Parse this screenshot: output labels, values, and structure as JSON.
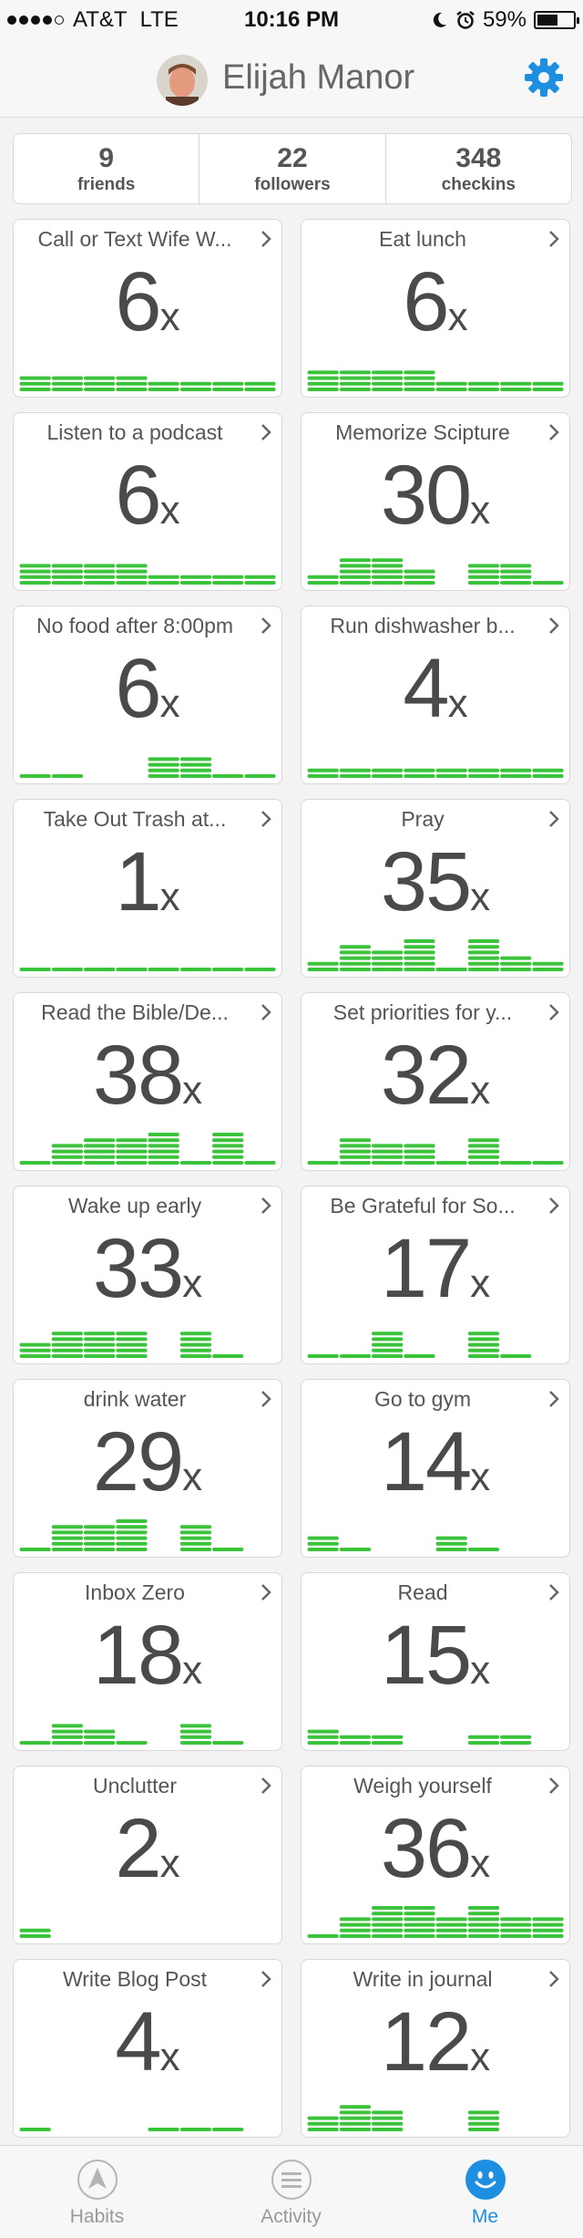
{
  "status_bar": {
    "carrier": "AT&T",
    "network": "LTE",
    "time": "10:16 PM",
    "battery": "59%",
    "battery_level": 0.59,
    "signal_bars_filled": 4,
    "signal_bars_total": 5
  },
  "header": {
    "user_name": "Elijah Manor",
    "settings_icon": "gear-icon",
    "accent_color": "#1e8fe0"
  },
  "stats": [
    {
      "value": "9",
      "label": "friends"
    },
    {
      "value": "22",
      "label": "followers"
    },
    {
      "value": "348",
      "label": "checkins"
    }
  ],
  "bar_color": "#3cc33c",
  "count_suffix": "x",
  "habits": [
    {
      "title": "Call or Text Wife W...",
      "count": "6",
      "bars": [
        3,
        3,
        3,
        3,
        2,
        2,
        2,
        2
      ]
    },
    {
      "title": "Eat lunch",
      "count": "6",
      "bars": [
        4,
        4,
        4,
        4,
        2,
        2,
        2,
        2
      ]
    },
    {
      "title": "Listen to a podcast",
      "count": "6",
      "bars": [
        4,
        4,
        4,
        4,
        2,
        2,
        2,
        2
      ]
    },
    {
      "title": "Memorize Scipture",
      "count": "30",
      "bars": [
        2,
        5,
        5,
        3,
        0,
        4,
        4,
        1
      ]
    },
    {
      "title": "No food after 8:00pm",
      "count": "6",
      "bars": [
        1,
        1,
        0,
        0,
        4,
        4,
        1,
        1
      ]
    },
    {
      "title": "Run dishwasher b...",
      "count": "4",
      "bars": [
        2,
        2,
        2,
        2,
        2,
        2,
        2,
        2
      ]
    },
    {
      "title": "Take Out Trash at...",
      "count": "1",
      "bars": [
        1,
        1,
        1,
        1,
        1,
        1,
        1,
        1
      ]
    },
    {
      "title": "Pray",
      "count": "35",
      "bars": [
        2,
        5,
        4,
        6,
        1,
        6,
        3,
        2
      ]
    },
    {
      "title": "Read the Bible/De...",
      "count": "38",
      "bars": [
        1,
        4,
        5,
        5,
        6,
        1,
        6,
        1
      ]
    },
    {
      "title": "Set priorities for y...",
      "count": "32",
      "bars": [
        1,
        5,
        4,
        4,
        1,
        5,
        1,
        1
      ]
    },
    {
      "title": "Wake up early",
      "count": "33",
      "bars": [
        3,
        5,
        5,
        5,
        0,
        5,
        1,
        0
      ]
    },
    {
      "title": "Be Grateful for So...",
      "count": "17",
      "bars": [
        1,
        1,
        5,
        1,
        0,
        5,
        1,
        0
      ]
    },
    {
      "title": "drink water",
      "count": "29",
      "bars": [
        1,
        5,
        5,
        6,
        0,
        5,
        1,
        0
      ]
    },
    {
      "title": "Go to gym",
      "count": "14",
      "bars": [
        3,
        1,
        0,
        0,
        3,
        1,
        0,
        0
      ]
    },
    {
      "title": "Inbox Zero",
      "count": "18",
      "bars": [
        1,
        4,
        3,
        1,
        0,
        4,
        1,
        0
      ]
    },
    {
      "title": "Read",
      "count": "15",
      "bars": [
        3,
        2,
        2,
        0,
        0,
        2,
        2,
        0
      ]
    },
    {
      "title": "Unclutter",
      "count": "2",
      "bars": [
        2,
        0,
        0,
        0,
        0,
        0,
        0,
        0
      ]
    },
    {
      "title": "Weigh yourself",
      "count": "36",
      "bars": [
        1,
        4,
        6,
        6,
        4,
        6,
        4,
        4
      ]
    },
    {
      "title": "Write Blog Post",
      "count": "4",
      "bars": [
        1,
        0,
        0,
        0,
        1,
        1,
        1,
        0
      ]
    },
    {
      "title": "Write in journal",
      "count": "12",
      "bars": [
        3,
        5,
        4,
        0,
        0,
        4,
        0,
        0
      ]
    }
  ],
  "tabbar": {
    "tabs": [
      {
        "label": "Habits",
        "icon": "navigation-arrow-icon",
        "active": false
      },
      {
        "label": "Activity",
        "icon": "list-icon",
        "active": false
      },
      {
        "label": "Me",
        "icon": "smiley-face-icon",
        "active": true
      }
    ]
  }
}
